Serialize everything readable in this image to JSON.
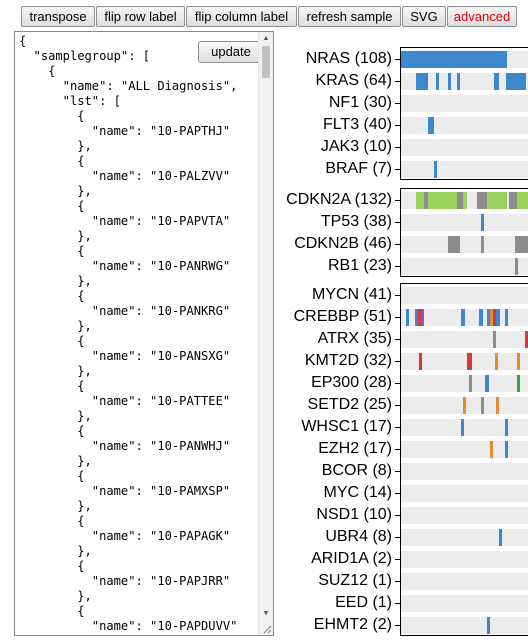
{
  "toolbar": {
    "transpose": "transpose",
    "flip_row_label": "flip row label",
    "flip_column_label": "flip column label",
    "refresh_sample": "refresh sample",
    "svg": "SVG",
    "advanced": "advanced"
  },
  "editor": {
    "update_label": "update",
    "code": "{\n  \"samplegroup\": [\n    {\n      \"name\": \"ALL Diagnosis\",\n      \"lst\": [\n        {\n          \"name\": \"10-PAPTHJ\"\n        },\n        {\n          \"name\": \"10-PALZVV\"\n        },\n        {\n          \"name\": \"10-PAPVTA\"\n        },\n        {\n          \"name\": \"10-PANRWG\"\n        },\n        {\n          \"name\": \"10-PANKRG\"\n        },\n        {\n          \"name\": \"10-PANSXG\"\n        },\n        {\n          \"name\": \"10-PATTEE\"\n        },\n        {\n          \"name\": \"10-PANWHJ\"\n        },\n        {\n          \"name\": \"10-PAMXSP\"\n        },\n        {\n          \"name\": \"10-PAPAGK\"\n        },\n        {\n          \"name\": \"10-PAPJRR\"\n        },\n        {\n          \"name\": \"10-PAPDUVV\""
  },
  "colors": {
    "snv": "#3d87cc",
    "cnv_loss": "#8c8c8c",
    "cnv_gain": "#9ad45e",
    "frameshift": "#e8892b",
    "nonsense": "#d93737",
    "splice": "#8d4fe0",
    "other": "#35a03d",
    "track_bg": "#ececec"
  },
  "groups": [
    {
      "rows": [
        {
          "label": "NRAS (108)",
          "marks": [
            [
              0,
              106,
              "snv"
            ]
          ]
        },
        {
          "label": "KRAS (64)",
          "marks": [
            [
              15,
              12,
              "snv"
            ],
            [
              35,
              3,
              "snv"
            ],
            [
              47,
              3,
              "snv"
            ],
            [
              56,
              3,
              "snv"
            ],
            [
              93,
              5,
              "snv"
            ],
            [
              105,
              20,
              "snv"
            ]
          ]
        },
        {
          "label": "NF1 (30)",
          "marks": []
        },
        {
          "label": "FLT3 (40)",
          "marks": [
            [
              27,
              6,
              "snv"
            ]
          ]
        },
        {
          "label": "JAK3 (10)",
          "marks": []
        },
        {
          "label": "BRAF (7)",
          "marks": [
            [
              33,
              3,
              "snv"
            ]
          ]
        }
      ]
    },
    {
      "rows": [
        {
          "label": "CDKN2A (132)",
          "marks": [
            [
              15,
              8,
              "cnv_gain"
            ],
            [
              23,
              4,
              "cnv_loss"
            ],
            [
              27,
              6,
              "cnv_gain"
            ],
            [
              33,
              10,
              "cnv_gain"
            ],
            [
              43,
              8,
              "cnv_gain"
            ],
            [
              51,
              5,
              "cnv_gain"
            ],
            [
              56,
              6,
              "cnv_loss"
            ],
            [
              62,
              4,
              "cnv_gain"
            ],
            [
              76,
              10,
              "cnv_loss"
            ],
            [
              86,
              16,
              "cnv_gain"
            ],
            [
              102,
              4,
              "cnv_gain"
            ],
            [
              108,
              8,
              "cnv_loss"
            ],
            [
              116,
              11,
              "cnv_gain"
            ]
          ]
        },
        {
          "label": "TP53 (38)",
          "marks": [
            [
              80,
              3,
              "snv"
            ]
          ]
        },
        {
          "label": "CDKN2B (46)",
          "marks": [
            [
              47,
              12,
              "cnv_loss"
            ],
            [
              80,
              3,
              "cnv_loss"
            ],
            [
              114,
              13,
              "cnv_loss"
            ]
          ]
        },
        {
          "label": "RB1 (23)",
          "marks": [
            [
              114,
              3,
              "cnv_loss"
            ]
          ]
        }
      ]
    },
    {
      "rows": [
        {
          "label": "MYCN (41)",
          "marks": []
        },
        {
          "label": "CREBBP (51)",
          "marks": [
            [
              5,
              3,
              "snv"
            ],
            [
              14,
              3,
              "snv"
            ],
            [
              17,
              3,
              "nonsense"
            ],
            [
              20,
              3,
              "splice"
            ],
            [
              60,
              4,
              "snv"
            ],
            [
              78,
              4,
              "snv"
            ],
            [
              86,
              3,
              "snv"
            ],
            [
              89,
              3,
              "frameshift"
            ],
            [
              92,
              3,
              "nonsense"
            ],
            [
              95,
              4,
              "snv"
            ],
            [
              104,
              3,
              "snv"
            ]
          ]
        },
        {
          "label": "ATRX (35)",
          "marks": [
            [
              92,
              3,
              "cnv_loss"
            ],
            [
              124,
              3,
              "nonsense"
            ]
          ]
        },
        {
          "label": "KMT2D (32)",
          "marks": [
            [
              18,
              3,
              "nonsense"
            ],
            [
              66,
              5,
              "nonsense"
            ],
            [
              94,
              3,
              "frameshift"
            ],
            [
              116,
              3,
              "frameshift"
            ]
          ]
        },
        {
          "label": "EP300 (28)",
          "marks": [
            [
              68,
              3,
              "cnv_loss"
            ],
            [
              84,
              4,
              "snv"
            ],
            [
              116,
              3,
              "other"
            ]
          ]
        },
        {
          "label": "SETD2 (25)",
          "marks": [
            [
              62,
              3,
              "frameshift"
            ],
            [
              80,
              3,
              "cnv_loss"
            ],
            [
              95,
              3,
              "frameshift"
            ]
          ]
        },
        {
          "label": "WHSC1 (17)",
          "marks": [
            [
              60,
              3,
              "snv"
            ],
            [
              104,
              3,
              "snv"
            ]
          ]
        },
        {
          "label": "EZH2 (17)",
          "marks": [
            [
              89,
              3,
              "frameshift"
            ],
            [
              104,
              3,
              "snv"
            ]
          ]
        },
        {
          "label": "BCOR (8)",
          "marks": []
        },
        {
          "label": "MYC (14)",
          "marks": []
        },
        {
          "label": "NSD1 (10)",
          "marks": []
        },
        {
          "label": "UBR4 (8)",
          "marks": [
            [
              98,
              3,
              "snv"
            ]
          ]
        },
        {
          "label": "ARID1A (2)",
          "marks": []
        },
        {
          "label": "SUZ12 (1)",
          "marks": []
        },
        {
          "label": "EED (1)",
          "marks": []
        },
        {
          "label": "EHMT2 (2)",
          "marks": [
            [
              86,
              3,
              "snv"
            ]
          ]
        }
      ]
    }
  ]
}
